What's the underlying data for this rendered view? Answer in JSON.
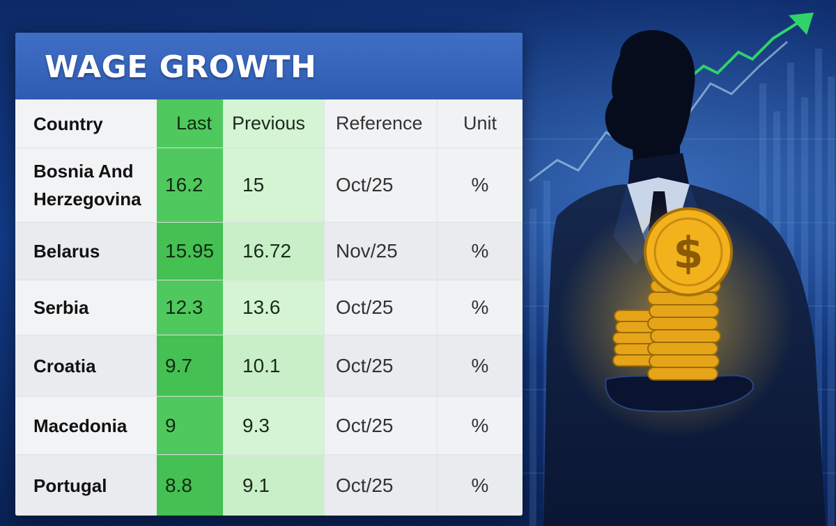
{
  "title": "WAGE GROWTH",
  "table": {
    "headers": [
      "Country",
      "Last",
      "Previous",
      "Reference",
      "Unit"
    ],
    "rows": [
      {
        "country": "Bosnia And Herzegovina",
        "last": "16.2",
        "previous": "15",
        "reference": "Oct/25",
        "unit": "%"
      },
      {
        "country": "Belarus",
        "last": "15.95",
        "previous": "16.72",
        "reference": "Nov/25",
        "unit": "%"
      },
      {
        "country": "Serbia",
        "last": "12.3",
        "previous": "13.6",
        "reference": "Oct/25",
        "unit": "%"
      },
      {
        "country": "Croatia",
        "last": "9.7",
        "previous": "10.1",
        "reference": "Oct/25",
        "unit": "%"
      },
      {
        "country": "Macedonia",
        "last": "9",
        "previous": "9.3",
        "reference": "Oct/25",
        "unit": "%"
      },
      {
        "country": "Portugal",
        "last": "8.8",
        "previous": "9.1",
        "reference": "Oct/25",
        "unit": "%"
      }
    ]
  },
  "illustration": {
    "figure": "businessman-silhouette",
    "coins_symbol": "$",
    "icon": "rising-arrow-icon"
  },
  "colors": {
    "title_bar": "#3565bb",
    "last_highlight": "#4fc95d",
    "previous_highlight": "#d4f4d3",
    "background": "#0d2a66",
    "coin": "#f2b21c"
  }
}
